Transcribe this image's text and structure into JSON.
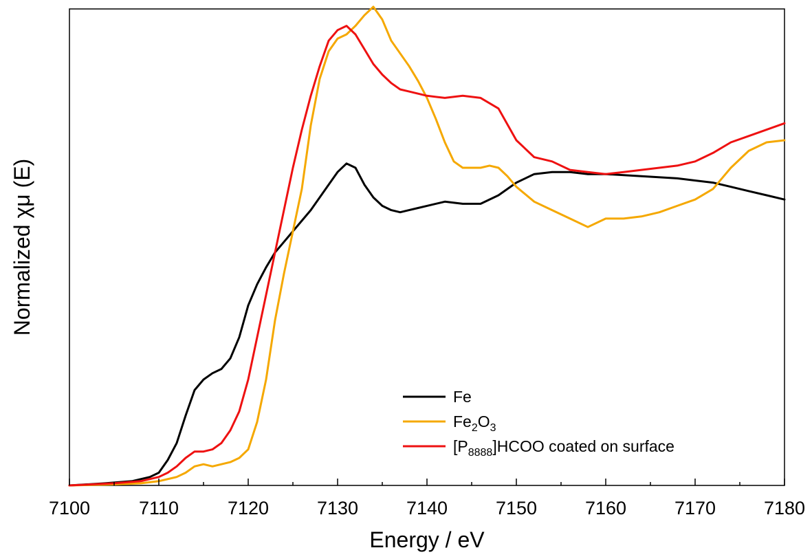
{
  "chart_data": {
    "type": "line",
    "xlabel": "Energy / eV",
    "ylabel": "Normalized χμ (E)",
    "xlim": [
      7100,
      7180
    ],
    "ylim": [
      0,
      2.25
    ],
    "grid": false,
    "y_tick_labels_shown": false,
    "x_ticks": [
      "7100",
      "7110",
      "7120",
      "7130",
      "7140",
      "7150",
      "7160",
      "7170",
      "7180"
    ],
    "legend_placement": "bottom-right",
    "series": [
      {
        "name": "Fe",
        "legend": {
          "main": "Fe",
          "sub": "",
          "tail": ""
        },
        "color": "#000000",
        "x": [
          7100,
          7104,
          7107,
          7109,
          7110,
          7111,
          7112,
          7113,
          7114,
          7115,
          7116,
          7117,
          7118,
          7119,
          7120,
          7121,
          7122,
          7123,
          7124,
          7125,
          7126,
          7127,
          7128,
          7129,
          7130,
          7131,
          7132,
          7133,
          7134,
          7135,
          7136,
          7137,
          7138,
          7139,
          7140,
          7142,
          7144,
          7146,
          7148,
          7150,
          7152,
          7154,
          7156,
          7158,
          7160,
          7164,
          7168,
          7172,
          7174,
          7176,
          7178,
          7180
        ],
        "y": [
          0.0,
          0.01,
          0.02,
          0.04,
          0.06,
          0.12,
          0.2,
          0.33,
          0.45,
          0.5,
          0.53,
          0.55,
          0.6,
          0.7,
          0.85,
          0.95,
          1.03,
          1.1,
          1.15,
          1.2,
          1.25,
          1.3,
          1.36,
          1.42,
          1.48,
          1.52,
          1.5,
          1.42,
          1.36,
          1.32,
          1.3,
          1.29,
          1.3,
          1.31,
          1.32,
          1.34,
          1.33,
          1.33,
          1.37,
          1.43,
          1.47,
          1.48,
          1.48,
          1.47,
          1.47,
          1.46,
          1.45,
          1.43,
          1.41,
          1.39,
          1.37,
          1.35
        ]
      },
      {
        "name": "Fe2O3",
        "legend": {
          "main": "Fe",
          "sub": "2",
          "tail": "O",
          "sub2": "3"
        },
        "color": "#f5a800",
        "x": [
          7100,
          7105,
          7108,
          7110,
          7112,
          7113,
          7114,
          7115,
          7116,
          7117,
          7118,
          7119,
          7120,
          7121,
          7122,
          7123,
          7124,
          7125,
          7126,
          7127,
          7128,
          7129,
          7130,
          7131,
          7132,
          7133,
          7134,
          7135,
          7136,
          7137,
          7138,
          7139,
          7140,
          7141,
          7142,
          7143,
          7144,
          7145,
          7146,
          7147,
          7148,
          7149,
          7150,
          7152,
          7154,
          7156,
          7158,
          7160,
          7162,
          7164,
          7166,
          7168,
          7170,
          7172,
          7174,
          7176,
          7178,
          7180
        ],
        "y": [
          0.0,
          0.005,
          0.01,
          0.02,
          0.04,
          0.06,
          0.09,
          0.1,
          0.09,
          0.1,
          0.11,
          0.13,
          0.17,
          0.3,
          0.5,
          0.78,
          1.0,
          1.2,
          1.4,
          1.7,
          1.92,
          2.05,
          2.11,
          2.13,
          2.17,
          2.22,
          2.26,
          2.2,
          2.1,
          2.04,
          1.98,
          1.91,
          1.83,
          1.73,
          1.62,
          1.53,
          1.5,
          1.5,
          1.5,
          1.51,
          1.5,
          1.46,
          1.41,
          1.34,
          1.3,
          1.26,
          1.22,
          1.26,
          1.26,
          1.27,
          1.29,
          1.32,
          1.35,
          1.4,
          1.5,
          1.58,
          1.62,
          1.63
        ]
      },
      {
        "name": "[P8888]HCOO coated on surface",
        "legend": {
          "main": "[P",
          "sub": "8888",
          "tail": "]HCOO coated on surface"
        },
        "color": "#ee1111",
        "x": [
          7100,
          7105,
          7108,
          7110,
          7111,
          7112,
          7113,
          7114,
          7115,
          7116,
          7117,
          7118,
          7119,
          7120,
          7121,
          7122,
          7123,
          7124,
          7125,
          7126,
          7127,
          7128,
          7129,
          7130,
          7131,
          7132,
          7133,
          7134,
          7135,
          7136,
          7137,
          7138,
          7140,
          7142,
          7144,
          7146,
          7148,
          7150,
          7152,
          7154,
          7156,
          7158,
          7160,
          7162,
          7164,
          7166,
          7168,
          7170,
          7172,
          7174,
          7176,
          7178,
          7180
        ],
        "y": [
          0.0,
          0.01,
          0.02,
          0.04,
          0.06,
          0.09,
          0.13,
          0.16,
          0.16,
          0.17,
          0.2,
          0.26,
          0.35,
          0.5,
          0.7,
          0.9,
          1.1,
          1.3,
          1.5,
          1.68,
          1.84,
          1.98,
          2.1,
          2.15,
          2.17,
          2.13,
          2.06,
          1.99,
          1.94,
          1.9,
          1.87,
          1.86,
          1.84,
          1.83,
          1.84,
          1.83,
          1.78,
          1.63,
          1.55,
          1.53,
          1.49,
          1.48,
          1.47,
          1.48,
          1.49,
          1.5,
          1.51,
          1.53,
          1.57,
          1.62,
          1.65,
          1.68,
          1.71
        ]
      }
    ]
  }
}
